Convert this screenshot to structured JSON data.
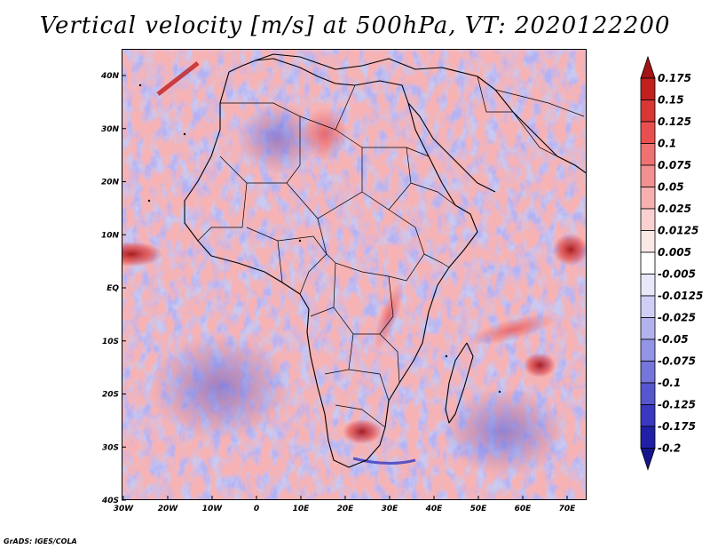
{
  "title": "Vertical velocity [m/s] at 500hPa, VT: 2020122200",
  "credit": "GrADS: IGES/COLA",
  "axes": {
    "lon_ticks": [
      "30W",
      "20W",
      "10W",
      "0",
      "10E",
      "20E",
      "30E",
      "40E",
      "50E",
      "60E",
      "70E"
    ],
    "lat_ticks": [
      "40N",
      "30N",
      "20N",
      "10N",
      "EQ",
      "10S",
      "20S",
      "30S",
      "40S"
    ]
  },
  "colorbar": {
    "labels": [
      "0.175",
      "0.15",
      "0.125",
      "0.1",
      "0.075",
      "0.05",
      "0.025",
      "0.0125",
      "0.005",
      "-0.005",
      "-0.0125",
      "-0.025",
      "-0.05",
      "-0.075",
      "-0.1",
      "-0.125",
      "-0.175",
      "-0.2"
    ],
    "colors": [
      "#a51414",
      "#c21f1f",
      "#d93636",
      "#e85050",
      "#ef7272",
      "#f39090",
      "#f7b0b0",
      "#fad0d0",
      "#fde8e8",
      "#ffffff",
      "#e8e8fb",
      "#cfcff6",
      "#b2b2ef",
      "#9494e6",
      "#7575db",
      "#5656cf",
      "#3838c0",
      "#2020a6",
      "#14148c"
    ]
  }
}
